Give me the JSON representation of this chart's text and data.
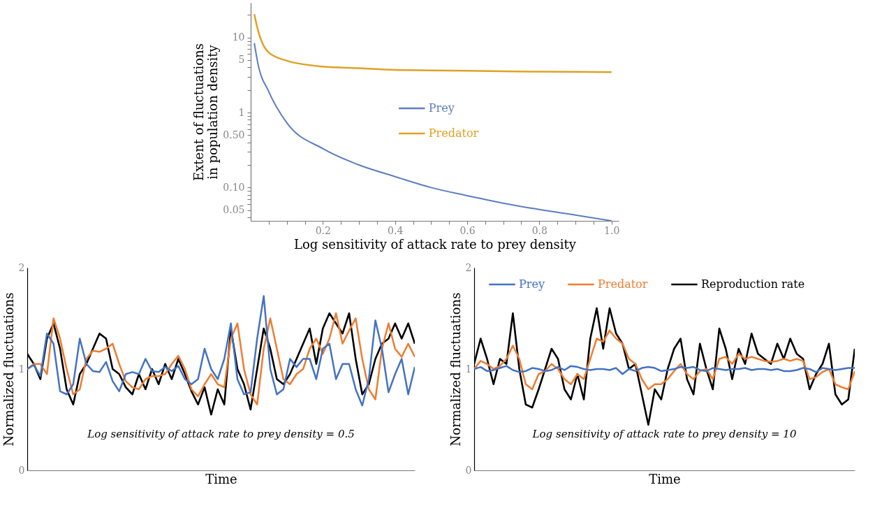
{
  "chart_data": [
    {
      "type": "line",
      "xlabel": "Log sensitivity of attack rate to prey density",
      "ylabel": "Extent of fluctuations in population density",
      "log": "y",
      "legend": "center",
      "grid": false,
      "xlim": [
        0,
        1.02
      ],
      "xticks": [
        {
          "value": 0.05,
          "label": null
        },
        {
          "value": 0.1,
          "label": null
        },
        {
          "value": 0.15,
          "label": null
        },
        0.2,
        {
          "value": 0.25,
          "label": null
        },
        {
          "value": 0.3,
          "label": null
        },
        {
          "value": 0.35,
          "label": null
        },
        0.4,
        {
          "value": 0.45,
          "label": null
        },
        {
          "value": 0.5,
          "label": null
        },
        {
          "value": 0.55,
          "label": null
        },
        0.6,
        {
          "value": 0.65,
          "label": null
        },
        {
          "value": 0.7,
          "label": null
        },
        {
          "value": 0.75,
          "label": null
        },
        0.8,
        {
          "value": 0.85,
          "label": null
        },
        {
          "value": 0.9,
          "label": null
        },
        {
          "value": 0.95,
          "label": null
        },
        {
          "value": 1,
          "label": "1.0"
        }
      ],
      "ylim": [
        0.036,
        29
      ],
      "yticks": [
        {
          "value": 0.04,
          "label": null
        },
        0.05,
        {
          "value": 0.06,
          "label": null
        },
        {
          "value": 0.07,
          "label": null
        },
        {
          "value": 0.08,
          "label": null
        },
        {
          "value": 0.09,
          "label": null
        },
        {
          "value": 0.1,
          "label": "0.10"
        },
        {
          "value": 0.2,
          "label": null
        },
        {
          "value": 0.3,
          "label": null
        },
        {
          "value": 0.4,
          "label": null
        },
        {
          "value": 0.5,
          "label": "0.50"
        },
        {
          "value": 0.6,
          "label": null
        },
        {
          "value": 0.7,
          "label": null
        },
        {
          "value": 0.8,
          "label": null
        },
        {
          "value": 0.9,
          "label": null
        },
        1,
        {
          "value": 2,
          "label": null
        },
        {
          "value": 3,
          "label": null
        },
        {
          "value": 4,
          "label": null
        },
        5,
        {
          "value": 6,
          "label": null
        },
        {
          "value": 7,
          "label": null
        },
        {
          "value": 8,
          "label": null
        },
        {
          "value": 9,
          "label": null
        },
        10,
        {
          "value": 20,
          "label": null
        }
      ],
      "x": [
        0.01,
        0.02,
        0.05,
        0.1,
        0.2,
        0.3,
        0.4,
        0.5,
        0.6,
        0.7,
        0.8,
        0.9,
        1.0
      ],
      "series": [
        {
          "name": "Prey",
          "color": "#5b7ec0",
          "values": [
            8.4,
            4.5,
            1.9,
            0.73,
            0.33,
            0.2,
            0.14,
            0.1,
            0.078,
            0.062,
            0.051,
            0.043,
            0.036
          ]
        },
        {
          "name": "Predator",
          "color": "#e0a126",
          "values": [
            20.5,
            12.6,
            6.3,
            4.9,
            4.1,
            3.9,
            3.7,
            3.65,
            3.6,
            3.55,
            3.5,
            3.48,
            3.45
          ]
        }
      ]
    },
    {
      "type": "line",
      "xlabel": "Time",
      "ylabel": "Normalized fluctuations",
      "legend": false,
      "tick_labels": "y",
      "grid": false,
      "annotations": [
        "Log sensitivity of attack rate to prey density = 0.5"
      ],
      "ylim": [
        0,
        2
      ],
      "yticks": [
        0,
        1,
        2
      ],
      "categories": [
        null,
        null,
        null,
        null,
        null,
        null,
        null,
        null,
        null,
        null,
        null,
        null,
        null,
        null,
        null,
        null,
        null,
        null,
        null,
        null,
        null,
        null,
        null,
        null,
        null,
        null,
        null,
        null,
        null,
        null,
        null,
        null,
        null,
        null,
        null,
        null,
        null,
        null,
        null,
        null,
        null,
        null,
        null,
        null,
        null,
        null,
        null,
        null,
        null,
        null,
        null,
        null,
        null,
        null,
        null,
        null,
        null,
        null,
        null,
        null
      ],
      "series": [
        {
          "color": "#4472c4",
          "values": [
            1.0,
            1.04,
            0.93,
            1.35,
            1.25,
            0.78,
            0.75,
            0.85,
            1.3,
            1.05,
            0.98,
            0.97,
            1.07,
            0.88,
            0.78,
            0.95,
            0.97,
            0.95,
            1.1,
            0.98,
            0.97,
            1.02,
            0.98,
            1.03,
            0.9,
            0.85,
            0.9,
            1.2,
            1.0,
            0.9,
            1.1,
            1.45,
            0.9,
            0.75,
            0.77,
            1.3,
            1.72,
            1.0,
            0.75,
            0.8,
            1.1,
            1.02,
            1.1,
            1.1,
            0.9,
            1.2,
            1.25,
            0.9,
            1.05,
            1.05,
            0.8,
            0.64,
            0.9,
            1.48,
            1.2,
            0.77,
            0.95,
            1.1,
            0.75,
            1.02
          ]
        },
        {
          "color": "#ed7d31",
          "values": [
            1.0,
            1.05,
            1.05,
            0.95,
            1.5,
            1.3,
            1.0,
            0.75,
            0.8,
            1.1,
            1.18,
            1.17,
            1.2,
            1.25,
            1.05,
            0.88,
            0.82,
            0.8,
            0.9,
            0.93,
            0.93,
            0.95,
            1.05,
            1.13,
            1.0,
            0.8,
            0.73,
            0.85,
            0.95,
            0.85,
            0.82,
            1.3,
            1.45,
            1.0,
            0.75,
            0.65,
            1.2,
            1.5,
            1.2,
            0.9,
            0.85,
            0.95,
            1.0,
            1.2,
            1.3,
            1.15,
            1.3,
            1.55,
            1.25,
            1.38,
            1.5,
            1.1,
            0.8,
            0.7,
            1.2,
            1.45,
            1.2,
            1.12,
            1.25,
            1.12
          ]
        },
        {
          "color": "#000000",
          "values": [
            1.15,
            1.05,
            0.9,
            1.3,
            1.45,
            1.2,
            0.8,
            0.65,
            0.95,
            1.05,
            1.2,
            1.35,
            1.3,
            1.0,
            0.95,
            0.82,
            0.75,
            0.95,
            0.8,
            1.0,
            0.85,
            1.05,
            0.9,
            1.1,
            0.95,
            0.78,
            0.65,
            0.82,
            0.55,
            0.8,
            0.65,
            1.4,
            1.0,
            0.85,
            0.6,
            1.0,
            1.4,
            1.2,
            0.9,
            0.85,
            0.95,
            1.1,
            1.25,
            1.4,
            1.05,
            1.4,
            1.55,
            1.45,
            1.35,
            1.55,
            1.1,
            0.75,
            0.85,
            1.1,
            1.25,
            1.3,
            1.45,
            1.3,
            1.45,
            1.25
          ]
        }
      ]
    },
    {
      "type": "line",
      "xlabel": "Time",
      "ylabel": "Normalized fluctuations",
      "legend": "top",
      "tick_labels": "y",
      "grid": false,
      "annotations": [
        "Log sensitivity of attack rate to prey density = 10"
      ],
      "ylim": [
        0,
        2
      ],
      "yticks": [
        0,
        1,
        2
      ],
      "categories": [
        null,
        null,
        null,
        null,
        null,
        null,
        null,
        null,
        null,
        null,
        null,
        null,
        null,
        null,
        null,
        null,
        null,
        null,
        null,
        null,
        null,
        null,
        null,
        null,
        null,
        null,
        null,
        null,
        null,
        null,
        null,
        null,
        null,
        null,
        null,
        null,
        null,
        null,
        null,
        null,
        null,
        null,
        null,
        null,
        null,
        null,
        null,
        null,
        null,
        null,
        null,
        null,
        null,
        null,
        null,
        null,
        null,
        null,
        null,
        null
      ],
      "series": [
        {
          "name": "Prey",
          "color": "#4472c4",
          "values": [
            1.0,
            1.02,
            0.98,
            0.99,
            1.01,
            1.03,
            0.99,
            0.97,
            0.98,
            1.01,
            1.0,
            0.98,
            0.99,
            1.02,
            0.99,
            1.03,
            1.02,
            1.0,
            0.99,
            1.0,
            1.0,
            0.99,
            1.01,
            0.95,
            1.0,
            0.98,
            1.01,
            1.02,
            1.01,
            0.98,
            0.99,
            1.0,
            1.02,
            1.01,
            1.02,
            0.99,
            0.98,
            1.01,
            1.0,
            0.99,
            1.0,
            1.0,
            1.01,
            0.99,
            1.0,
            1.0,
            0.99,
            1.0,
            0.98,
            0.98,
            0.99,
            1.01,
            1.0,
            0.97,
            1.01,
            1.0,
            0.99,
            1.0,
            1.01,
            1.01
          ]
        },
        {
          "name": "Predator",
          "color": "#ed7d31",
          "values": [
            1.0,
            1.08,
            1.05,
            1.0,
            1.03,
            1.1,
            1.23,
            1.1,
            0.85,
            0.8,
            0.95,
            0.98,
            1.05,
            1.0,
            0.9,
            0.85,
            0.95,
            0.9,
            1.1,
            1.3,
            1.27,
            1.38,
            1.3,
            1.25,
            1.1,
            1.05,
            0.9,
            0.8,
            0.85,
            0.85,
            0.9,
            0.98,
            1.05,
            0.95,
            0.9,
            0.98,
            1.0,
            0.9,
            1.1,
            1.12,
            1.05,
            1.15,
            1.1,
            1.12,
            1.1,
            1.08,
            1.07,
            1.08,
            1.1,
            1.08,
            1.1,
            1.08,
            0.9,
            0.92,
            0.97,
            1.0,
            0.85,
            0.82,
            0.8,
            0.98
          ]
        },
        {
          "name": "Reproduction rate",
          "color": "#000000",
          "values": [
            1.05,
            1.3,
            1.1,
            0.85,
            1.1,
            1.05,
            1.55,
            1.0,
            0.65,
            0.62,
            0.8,
            1.0,
            1.2,
            1.1,
            0.8,
            0.7,
            0.95,
            0.7,
            1.3,
            1.6,
            1.2,
            1.6,
            1.35,
            1.25,
            1.0,
            1.05,
            0.75,
            0.45,
            0.8,
            0.7,
            1.0,
            1.2,
            1.3,
            0.9,
            0.75,
            1.25,
            1.0,
            0.8,
            1.4,
            1.2,
            0.9,
            1.2,
            1.05,
            1.35,
            1.15,
            1.1,
            1.05,
            1.25,
            1.1,
            1.3,
            1.15,
            1.1,
            0.8,
            0.95,
            1.05,
            1.25,
            0.75,
            0.65,
            0.7,
            1.2
          ]
        }
      ]
    }
  ]
}
